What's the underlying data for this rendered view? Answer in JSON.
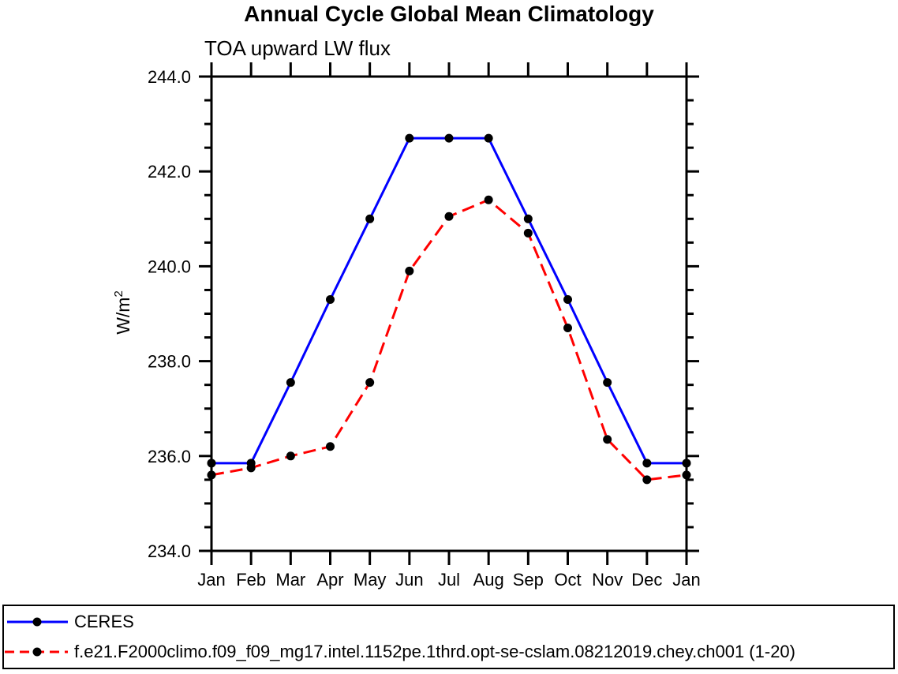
{
  "chart_data": {
    "type": "line",
    "title": "Annual Cycle Global Mean Climatology",
    "subtitle": "TOA upward LW flux",
    "ylabel": "W/m2",
    "ylabel_base": "W/m",
    "ylabel_sup": "2",
    "categories": [
      "Jan",
      "Feb",
      "Mar",
      "Apr",
      "May",
      "Jun",
      "Jul",
      "Aug",
      "Sep",
      "Oct",
      "Nov",
      "Dec",
      "Jan"
    ],
    "ylim": [
      234.0,
      244.0
    ],
    "ytick_values": [
      234,
      236,
      238,
      240,
      242,
      244
    ],
    "ytick_labels": [
      "234.0",
      "236.0",
      "238.0",
      "240.0",
      "242.0",
      "244.0"
    ],
    "ytick_minor_step": 0.5,
    "grid": false,
    "legend_position": "bottom-outside-box",
    "series": [
      {
        "name": "CERES",
        "color": "#0000ff",
        "line_style": "solid",
        "marker": "circle",
        "marker_color": "#000000",
        "values": [
          235.85,
          235.85,
          237.55,
          239.3,
          241.0,
          242.7,
          242.7,
          242.7,
          241.0,
          239.3,
          237.55,
          235.85,
          235.85
        ]
      },
      {
        "name": "f.e21.F2000climo.f09_f09_mg17.intel.1152pe.1thrd.opt-se-cslam.08212019.chey.ch001 (1-20)",
        "color": "#ff0000",
        "line_style": "dashed",
        "marker": "circle",
        "marker_color": "#000000",
        "values": [
          235.6,
          235.75,
          236.0,
          236.2,
          237.55,
          239.9,
          241.05,
          241.4,
          240.7,
          238.7,
          236.35,
          235.5,
          235.6
        ]
      }
    ],
    "axis_color": "#000000",
    "background_color": "#ffffff"
  }
}
